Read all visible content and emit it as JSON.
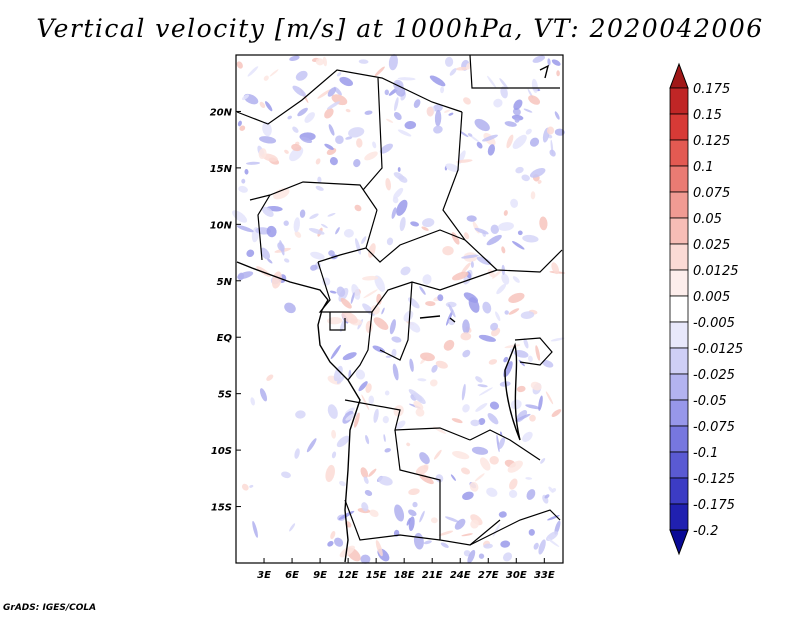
{
  "title": "Vertical velocity [m/s] at 1000hPa, VT: 2020042006",
  "footer": "GrADS: IGES/COLA",
  "map": {
    "lon_range": [
      0,
      35
    ],
    "lat_range": [
      -20,
      25
    ],
    "lat_ticks": [
      {
        "value": 20,
        "label": "20N"
      },
      {
        "value": 15,
        "label": "15N"
      },
      {
        "value": 10,
        "label": "10N"
      },
      {
        "value": 5,
        "label": "5N"
      },
      {
        "value": 0,
        "label": "EQ"
      },
      {
        "value": -5,
        "label": "5S"
      },
      {
        "value": -10,
        "label": "10S"
      },
      {
        "value": -15,
        "label": "15S"
      }
    ],
    "lon_ticks": [
      {
        "value": 3,
        "label": "3E"
      },
      {
        "value": 6,
        "label": "6E"
      },
      {
        "value": 9,
        "label": "9E"
      },
      {
        "value": 12,
        "label": "12E"
      },
      {
        "value": 15,
        "label": "15E"
      },
      {
        "value": 18,
        "label": "18E"
      },
      {
        "value": 21,
        "label": "21E"
      },
      {
        "value": 24,
        "label": "24E"
      },
      {
        "value": 27,
        "label": "27E"
      },
      {
        "value": 30,
        "label": "30E"
      },
      {
        "value": 33,
        "label": "33E"
      }
    ]
  },
  "colorbar": {
    "labels": [
      "0.175",
      "0.15",
      "0.125",
      "0.1",
      "0.075",
      "0.05",
      "0.025",
      "0.0125",
      "0.005",
      "-0.005",
      "-0.0125",
      "-0.025",
      "-0.05",
      "-0.075",
      "-0.1",
      "-0.125",
      "-0.175",
      "-0.2"
    ],
    "colors": [
      "#a01818",
      "#c02626",
      "#d73a36",
      "#e35a52",
      "#ea7b73",
      "#f19b93",
      "#f7bdb6",
      "#fbdad5",
      "#fdeeec",
      "#ffffff",
      "#e8e8fb",
      "#cfcff6",
      "#b3b3f0",
      "#9797ea",
      "#7777df",
      "#5a5ad3",
      "#3c3cc4",
      "#2020b0",
      "#0a0a96"
    ]
  }
}
